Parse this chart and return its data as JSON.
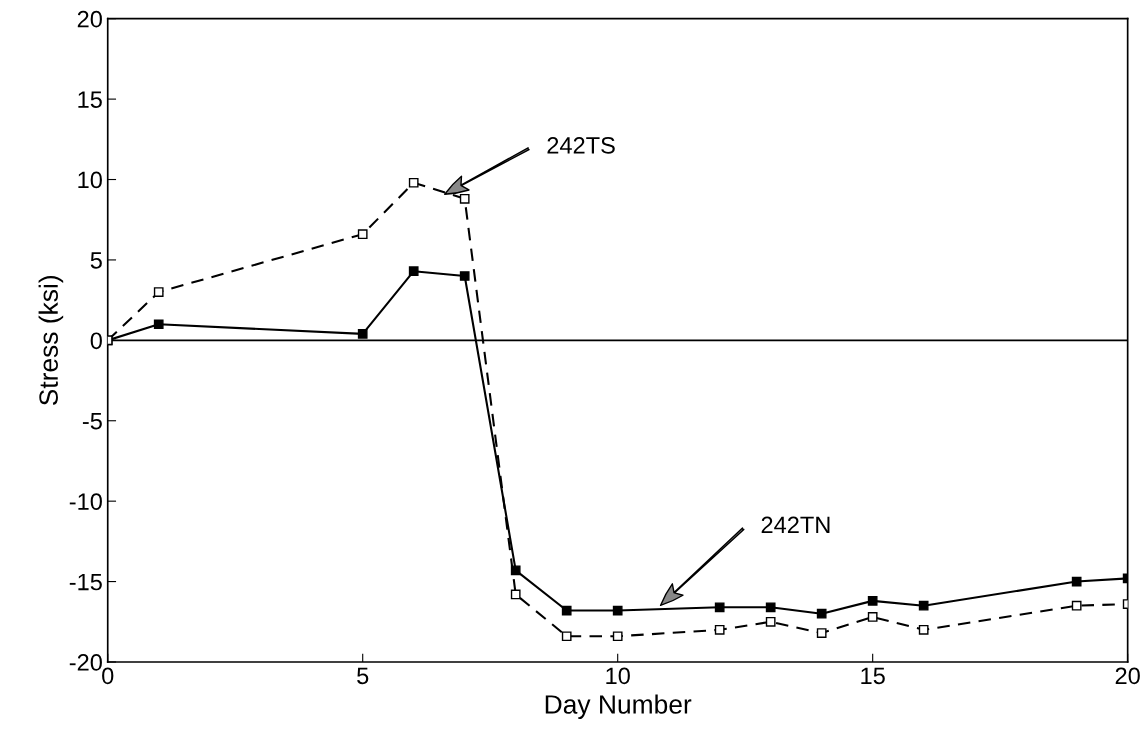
{
  "chart_data": {
    "type": "line",
    "xlabel": "Day Number",
    "ylabel": "Stress (ksi)",
    "xlim": [
      0,
      20
    ],
    "xticks": [
      0,
      5,
      10,
      15,
      20
    ],
    "ylim": [
      -20,
      20
    ],
    "yticks": [
      -20,
      -15,
      -10,
      -5,
      0,
      5,
      10,
      15,
      20
    ],
    "grid": false,
    "legend": false,
    "series": [
      {
        "color": "#000000",
        "line_style": "solid",
        "marker": "square",
        "x": [
          0,
          1,
          5,
          6,
          7,
          8,
          9,
          10,
          12,
          13,
          14,
          15,
          16,
          19,
          20
        ],
        "values": [
          0,
          1.0,
          0.4,
          4.3,
          4.0,
          -14.3,
          -16.8,
          -16.8,
          -16.6,
          -16.6,
          -17.0,
          -16.2,
          -16.5,
          -15.0,
          -14.8
        ]
      },
      {
        "color": "#000000",
        "line_style": "dashed",
        "marker": "square",
        "x": [
          0,
          1,
          5,
          6,
          7,
          8,
          9,
          10,
          12,
          13,
          14,
          15,
          16,
          19,
          20
        ],
        "values": [
          0,
          3.0,
          6.6,
          9.8,
          8.8,
          -15.8,
          -18.4,
          -18.4,
          -18.0,
          -17.5,
          -18.2,
          -17.2,
          -18.0,
          -16.5,
          -16.4
        ]
      }
    ],
    "ref_lines": [
      {
        "axis": "y",
        "value": 0,
        "color": "#000000"
      }
    ],
    "annotations": [
      "242TS",
      "242TN"
    ]
  }
}
